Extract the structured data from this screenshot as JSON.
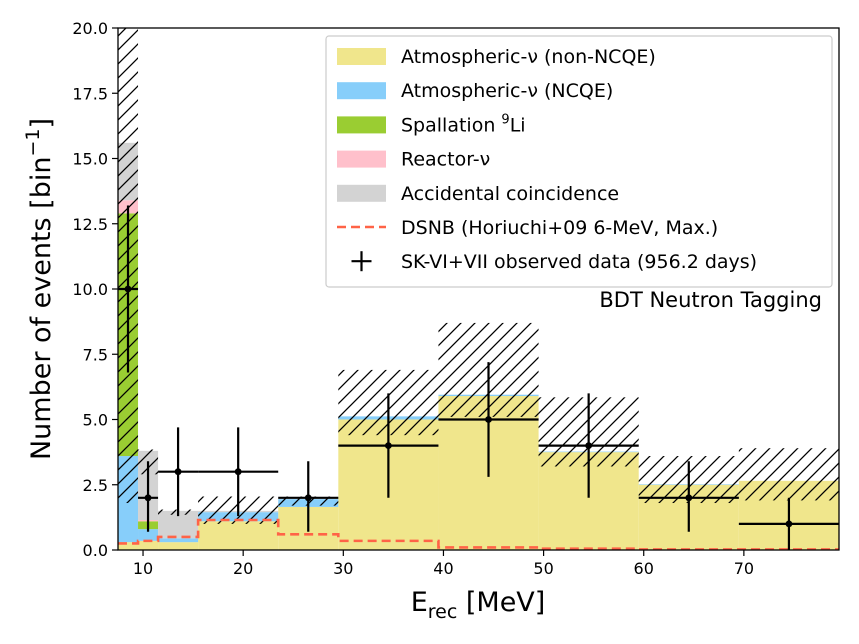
{
  "chart_data": {
    "type": "bar",
    "subtype": "stacked-histogram",
    "xlabel_main": "E",
    "xlabel_sub": "rec",
    "xlabel_unit": " [MeV]",
    "ylabel": "Number of events [bin",
    "ylabel_sup": "−1",
    "ylabel_close": "]",
    "xlim": [
      7.5,
      79.5
    ],
    "ylim": [
      0,
      20
    ],
    "xticks": [
      10,
      20,
      30,
      40,
      50,
      60,
      70
    ],
    "yticks": [
      0.0,
      2.5,
      5.0,
      7.5,
      10.0,
      12.5,
      15.0,
      17.5,
      20.0
    ],
    "ytick_labels": [
      "0.0",
      "2.5",
      "5.0",
      "7.5",
      "10.0",
      "12.5",
      "15.0",
      "17.5",
      "20.0"
    ],
    "annotation": "BDT Neutron Tagging",
    "bin_edges": [
      7.5,
      9.5,
      11.5,
      15.5,
      23.5,
      29.5,
      39.5,
      49.5,
      59.5,
      69.5,
      79.5
    ],
    "series": [
      {
        "name": "Atmospheric-ν (non-NCQE)",
        "legend_main": "Atmospheric-ν",
        "legend_tail": " (non-NCQE)",
        "color": "#f0e68c",
        "values": [
          0.3,
          0.35,
          0.3,
          1.1,
          1.65,
          5.0,
          5.9,
          3.75,
          2.5,
          2.65
        ]
      },
      {
        "name": "Atmospheric-ν (NCQE)",
        "legend_main": "Atmospheric-ν",
        "legend_tail": " (NCQE)",
        "color": "#87cefa",
        "values": [
          3.3,
          0.45,
          0.15,
          0.35,
          0.3,
          0.12,
          0.05,
          0.02,
          0.02,
          0.0
        ]
      },
      {
        "name": "Spallation 9Li",
        "legend_main": "Spallation ",
        "legend_sup": "9",
        "legend_tail": "Li",
        "color": "#9acd32",
        "values": [
          9.3,
          0.3,
          0.0,
          0.0,
          0.0,
          0.0,
          0.0,
          0.0,
          0.0,
          0.0
        ]
      },
      {
        "name": "Reactor-ν",
        "legend_main": "Reactor-ν",
        "legend_tail": "",
        "color": "#ffc0cb",
        "values": [
          0.5,
          0.05,
          0.0,
          0.0,
          0.0,
          0.0,
          0.0,
          0.0,
          0.0,
          0.0
        ]
      },
      {
        "name": "Accidental coincidence",
        "legend_main": "Accidental coincidence",
        "legend_tail": "",
        "color": "#d3d3d3",
        "values": [
          2.2,
          2.65,
          1.05,
          0.05,
          0.0,
          0.0,
          0.0,
          0.0,
          0.0,
          0.0
        ]
      }
    ],
    "uncertainty_band": {
      "lower": [
        1.8,
        2.9,
        1.35,
        1.0,
        1.7,
        4.4,
        5.1,
        3.2,
        1.8,
        1.9
      ],
      "upper": [
        20.0,
        3.85,
        1.55,
        2.05,
        2.05,
        6.9,
        8.7,
        5.85,
        3.6,
        3.9
      ]
    },
    "dsnb": {
      "name": "DSNB (Horiuchi+09 6-MeV, Max.)",
      "color": "#ff6347",
      "values": [
        0.25,
        0.35,
        0.5,
        1.15,
        0.6,
        0.35,
        0.1,
        0.05,
        0.02,
        0.02
      ]
    },
    "data_points": {
      "name": "SK-VI+VII observed data (956.2 days)",
      "points": [
        {
          "x": 8.5,
          "y": 10,
          "xerr": 1.0,
          "ylo": 6.8,
          "yhi": 13.2
        },
        {
          "x": 10.5,
          "y": 2,
          "xerr": 1.0,
          "ylo": 0.7,
          "yhi": 3.4
        },
        {
          "x": 13.5,
          "y": 3,
          "xerr": 2.0,
          "ylo": 1.3,
          "yhi": 4.7
        },
        {
          "x": 19.5,
          "y": 3,
          "xerr": 4.0,
          "ylo": 1.3,
          "yhi": 4.7
        },
        {
          "x": 26.5,
          "y": 2,
          "xerr": 3.0,
          "ylo": 0.7,
          "yhi": 3.4
        },
        {
          "x": 34.5,
          "y": 4,
          "xerr": 5.0,
          "ylo": 2.0,
          "yhi": 6.0
        },
        {
          "x": 44.5,
          "y": 5,
          "xerr": 5.0,
          "ylo": 2.8,
          "yhi": 7.2
        },
        {
          "x": 54.5,
          "y": 4,
          "xerr": 5.0,
          "ylo": 2.0,
          "yhi": 6.0
        },
        {
          "x": 64.5,
          "y": 2,
          "xerr": 5.0,
          "ylo": 0.7,
          "yhi": 3.4
        },
        {
          "x": 74.5,
          "y": 1,
          "xerr": 5.0,
          "ylo": 0.0,
          "yhi": 2.0
        }
      ]
    },
    "legend_location": "top-right"
  }
}
